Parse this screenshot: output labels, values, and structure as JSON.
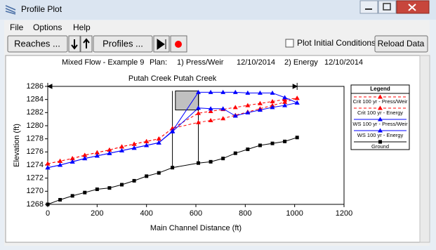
{
  "window": {
    "title": "Profile Plot",
    "menu": [
      "File",
      "Options",
      "Help"
    ],
    "toolbar": {
      "reaches": "Reaches ...",
      "profiles": "Profiles ...",
      "plot_initial": "Plot Initial Conditions",
      "reload": "Reload Data"
    }
  },
  "chart_data": {
    "type": "line",
    "title": "Mixed Flow - Example 9",
    "plan_label": "Plan:",
    "plans": [
      "1) Press/Weir",
      "12/10/2014",
      "2) Energy",
      "12/10/2014"
    ],
    "reach_label": "Putah Creek Putah Creek",
    "reach_xlim": [
      0,
      1010
    ],
    "x_label": "Main Channel Distance (ft)",
    "y_label": "Elevation (ft)",
    "x": [
      0,
      50,
      100,
      150,
      200,
      250,
      300,
      350,
      400,
      450,
      505,
      610,
      660,
      710,
      760,
      810,
      860,
      910,
      960,
      1010
    ],
    "series": [
      {
        "name": "Crit  100 yr - Press/Weir",
        "color": "#ff0000",
        "dashed": true,
        "marker": "triangle",
        "values": [
          1274.2,
          1274.6,
          1275,
          1275.5,
          1275.9,
          1276.3,
          1276.8,
          1277.2,
          1277.6,
          1278,
          1279.6,
          1281.9,
          1282.2,
          1282.5,
          1282.8,
          1283.1,
          1283.4,
          1283.7,
          1284,
          1284.2
        ]
      },
      {
        "name": "Crit  100 yr - Energy",
        "color": "#ff0000",
        "dashed": true,
        "marker": "triangle",
        "values": [
          1274.2,
          1274.6,
          1275,
          1275.5,
          1275.9,
          1276.3,
          1276.8,
          1277.2,
          1277.6,
          1278,
          1279.6,
          1280.5,
          1280.8,
          1281.1,
          1281.6,
          1282.1,
          1282.6,
          1283.1,
          1283.6,
          1284.2
        ]
      },
      {
        "name": "WS  100 yr - Press/Weir",
        "color": "#0000ff",
        "dashed": false,
        "marker": "triangle",
        "values": [
          1273.6,
          1274,
          1274.5,
          1275,
          1275.4,
          1275.8,
          1276.2,
          1276.6,
          1277,
          1277.4,
          1279.2,
          1285.1,
          1285.1,
          1285.1,
          1285.1,
          1285,
          1285,
          1285,
          1284.3,
          1283.5
        ]
      },
      {
        "name": "WS  100 yr - Energy",
        "color": "#0000ff",
        "dashed": false,
        "marker": "triangle",
        "values": [
          1273.6,
          1274,
          1274.5,
          1275,
          1275.4,
          1275.8,
          1276.2,
          1276.6,
          1277,
          1277.4,
          1279.1,
          1282.7,
          1282.6,
          1282.6,
          1281.5,
          1282,
          1282.4,
          1282.8,
          1283.1,
          1283.5
        ]
      },
      {
        "name": "Ground",
        "color": "#000000",
        "dashed": false,
        "marker": "square",
        "values": [
          1268,
          1268.7,
          1269.3,
          1269.8,
          1270.3,
          1270.5,
          1271,
          1271.6,
          1272.3,
          1272.8,
          1273.6,
          1274.3,
          1274.5,
          1275,
          1275.8,
          1276.4,
          1277,
          1277.3,
          1277.6,
          1278.2
        ]
      }
    ],
    "xlim": [
      0,
      1200
    ],
    "xticks": [
      0,
      200,
      400,
      600,
      800,
      1000,
      1200
    ],
    "ylim": [
      1268,
      1286
    ],
    "yticks": [
      1268,
      1270,
      1272,
      1274,
      1276,
      1278,
      1280,
      1282,
      1284,
      1286
    ],
    "legend_title": "Legend",
    "legend": "right",
    "bridge": {
      "piers_x": [
        505,
        610
      ],
      "deck_x": [
        517,
        611
      ],
      "low_chord": 1282.4,
      "high_chord": 1285.3
    }
  }
}
